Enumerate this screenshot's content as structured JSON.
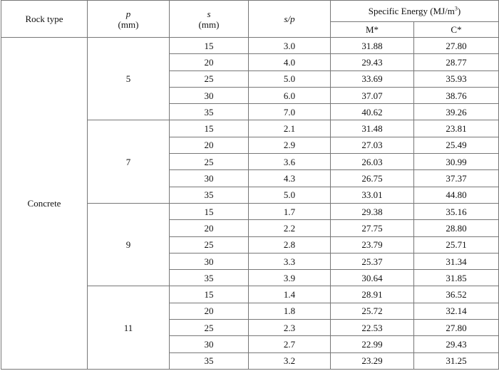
{
  "table": {
    "header": {
      "rock_type": "Rock type",
      "p": {
        "symbol": "p",
        "unit": "(mm)"
      },
      "s": {
        "symbol": "s",
        "unit": "(mm)"
      },
      "sp": "s/p",
      "energy": {
        "text": "Specific Energy (MJ/m",
        "superscript": "3",
        "close": ")"
      },
      "m": "M*",
      "c": "C*"
    },
    "rock_type": "Concrete",
    "groups": [
      {
        "p": "5",
        "rows": [
          [
            "15",
            "3.0",
            "31.88",
            "27.80"
          ],
          [
            "20",
            "4.0",
            "29.43",
            "28.77"
          ],
          [
            "25",
            "5.0",
            "33.69",
            "35.93"
          ],
          [
            "30",
            "6.0",
            "37.07",
            "38.76"
          ],
          [
            "35",
            "7.0",
            "40.62",
            "39.26"
          ]
        ]
      },
      {
        "p": "7",
        "rows": [
          [
            "15",
            "2.1",
            "31.48",
            "23.81"
          ],
          [
            "20",
            "2.9",
            "27.03",
            "25.49"
          ],
          [
            "25",
            "3.6",
            "26.03",
            "30.99"
          ],
          [
            "30",
            "4.3",
            "26.75",
            "37.37"
          ],
          [
            "35",
            "5.0",
            "33.01",
            "44.80"
          ]
        ]
      },
      {
        "p": "9",
        "rows": [
          [
            "15",
            "1.7",
            "29.38",
            "35.16"
          ],
          [
            "20",
            "2.2",
            "27.75",
            "28.80"
          ],
          [
            "25",
            "2.8",
            "23.79",
            "25.71"
          ],
          [
            "30",
            "3.3",
            "25.37",
            "31.34"
          ],
          [
            "35",
            "3.9",
            "30.64",
            "31.85"
          ]
        ]
      },
      {
        "p": "11",
        "rows": [
          [
            "15",
            "1.4",
            "28.91",
            "36.52"
          ],
          [
            "20",
            "1.8",
            "25.72",
            "32.14"
          ],
          [
            "25",
            "2.3",
            "22.53",
            "27.80"
          ],
          [
            "30",
            "2.7",
            "22.99",
            "29.43"
          ],
          [
            "35",
            "3.2",
            "23.29",
            "31.25"
          ]
        ]
      }
    ]
  }
}
